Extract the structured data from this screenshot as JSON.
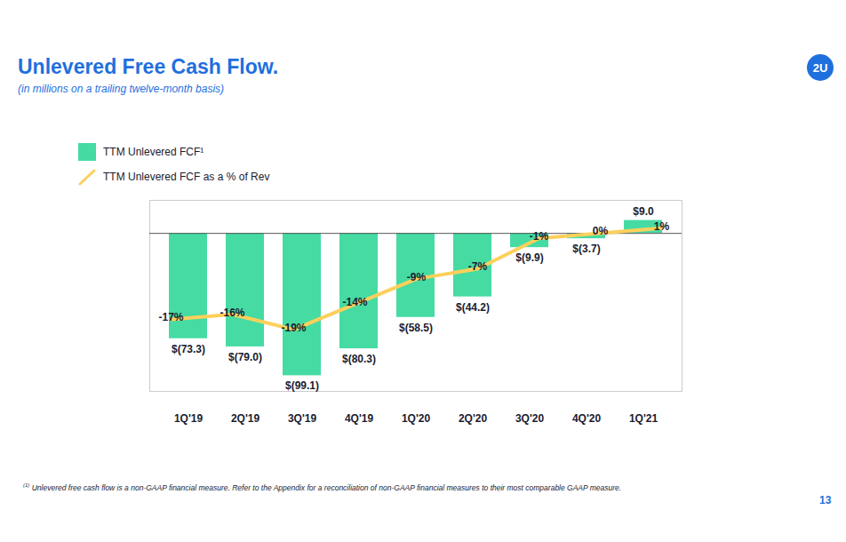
{
  "chart_data": {
    "type": "bar",
    "title": "Unlevered Free Cash Flow.",
    "subtitle": "(in millions on a trailing twelve-month basis)",
    "logo": "2U",
    "footnote_marker": "(1)",
    "footnote": "Unlevered free cash flow is a non-GAAP financial measure. Refer to the Appendix for a reconciliation of non-GAAP financial measures to their most comparable GAAP measure.",
    "page_number": "13",
    "categories": [
      "1Q'19",
      "2Q'19",
      "3Q'19",
      "4Q'19",
      "1Q'20",
      "2Q'20",
      "3Q'20",
      "4Q'20",
      "1Q'21"
    ],
    "series": [
      {
        "name": "TTM Unlevered FCF¹",
        "type": "bar",
        "color": "#45dba3",
        "values": [
          -73.3,
          -79.0,
          -99.1,
          -80.3,
          -58.5,
          -44.2,
          -9.9,
          -3.7,
          9.0
        ],
        "value_labels": [
          "$(73.3)",
          "$(79.0)",
          "$(99.1)",
          "$(80.3)",
          "$(58.5)",
          "$(44.2)",
          "$(9.9)",
          "$(3.7)",
          "$9.0"
        ]
      },
      {
        "name": "TTM Unlevered FCF as a % of Rev",
        "type": "line",
        "axis": "y2",
        "color": "#fcd05b",
        "values": [
          -17,
          -16,
          -19,
          -14,
          -9,
          -7,
          -1,
          0,
          1
        ],
        "value_labels": [
          "-17%",
          "-16%",
          "-19%",
          "-14%",
          "-9%",
          "-7%",
          "-1%",
          "0%",
          "1%"
        ]
      }
    ],
    "ylim": [
      -110,
      23
    ],
    "yticks": [
      0
    ],
    "y2lim": [
      -31.2,
      6.5
    ],
    "y2ticks": [],
    "grid": true,
    "tick_labels": "x",
    "data_labels": true,
    "legend": "top-left"
  }
}
